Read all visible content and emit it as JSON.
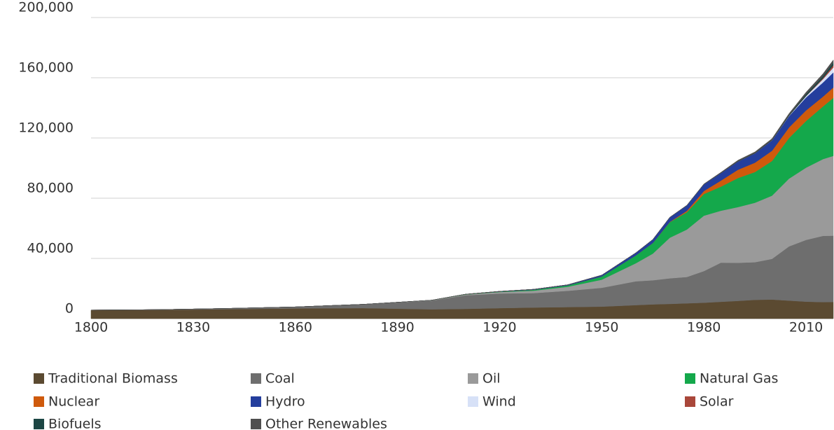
{
  "chart_data": {
    "type": "stacked_area",
    "x": [
      1800,
      1820,
      1840,
      1860,
      1880,
      1900,
      1910,
      1920,
      1930,
      1940,
      1950,
      1960,
      1965,
      1970,
      1975,
      1980,
      1985,
      1990,
      1995,
      2000,
      2005,
      2010,
      2015,
      2018
    ],
    "series": [
      {
        "name": "Traditional Biomass",
        "color": "#5b4a31",
        "values": [
          5600,
          5800,
          6300,
          6800,
          7000,
          6200,
          6500,
          7000,
          7400,
          7700,
          8000,
          9000,
          9500,
          9800,
          10200,
          10600,
          11200,
          11800,
          12500,
          12700,
          12000,
          11300,
          11000,
          11100
        ]
      },
      {
        "name": "Coal",
        "color": "#6e6e6e",
        "values": [
          100,
          200,
          500,
          1000,
          2500,
          5800,
          9000,
          9700,
          9600,
          10800,
          12500,
          15800,
          16000,
          17000,
          17500,
          21000,
          26000,
          25300,
          25000,
          27000,
          36000,
          41000,
          44000,
          44000
        ]
      },
      {
        "name": "Oil",
        "color": "#9a9a9a",
        "values": [
          0,
          0,
          0,
          0,
          30,
          200,
          500,
          1000,
          1600,
          2700,
          5400,
          12000,
          17700,
          27000,
          31500,
          36800,
          34500,
          37000,
          39500,
          42000,
          45000,
          48000,
          51000,
          53000
        ]
      },
      {
        "name": "Natural Gas",
        "color": "#14a84b",
        "values": [
          0,
          0,
          0,
          0,
          0,
          60,
          150,
          250,
          600,
          900,
          2100,
          5200,
          7000,
          10300,
          11500,
          14400,
          16000,
          19300,
          20400,
          23000,
          27000,
          31000,
          35000,
          38500
        ]
      },
      {
        "name": "Nuclear",
        "color": "#cf5a0c",
        "values": [
          0,
          0,
          0,
          0,
          0,
          0,
          0,
          0,
          0,
          0,
          0,
          0,
          60,
          200,
          900,
          2000,
          4000,
          5500,
          6200,
          6800,
          7000,
          7000,
          6500,
          6900
        ]
      },
      {
        "name": "Hydro",
        "color": "#243e9d",
        "values": [
          0,
          0,
          0,
          0,
          0,
          0,
          100,
          200,
          300,
          400,
          900,
          1700,
          2300,
          3000,
          3600,
          4400,
          5000,
          5500,
          6200,
          6900,
          7500,
          8600,
          9400,
          10000
        ]
      },
      {
        "name": "Wind",
        "color": "#d7e1f7",
        "values": [
          0,
          0,
          0,
          0,
          0,
          0,
          0,
          0,
          0,
          0,
          0,
          0,
          0,
          0,
          0,
          0,
          0,
          10,
          20,
          80,
          260,
          900,
          2200,
          3300
        ]
      },
      {
        "name": "Solar",
        "color": "#a9473a",
        "values": [
          0,
          0,
          0,
          0,
          0,
          0,
          0,
          0,
          0,
          0,
          0,
          0,
          0,
          0,
          0,
          0,
          0,
          0,
          0,
          0,
          10,
          80,
          650,
          1500
        ]
      },
      {
        "name": "Biofuels",
        "color": "#1c4644",
        "values": [
          0,
          0,
          0,
          0,
          0,
          0,
          0,
          0,
          0,
          0,
          0,
          0,
          0,
          0,
          20,
          40,
          100,
          250,
          250,
          270,
          480,
          1200,
          1400,
          1700
        ]
      },
      {
        "name": "Other Renewables",
        "color": "#4f4f4f",
        "values": [
          0,
          0,
          0,
          0,
          0,
          0,
          0,
          0,
          0,
          0,
          0,
          40,
          60,
          100,
          150,
          250,
          400,
          550,
          700,
          800,
          950,
          1300,
          1600,
          1800
        ]
      }
    ],
    "xlim": [
      1800,
      2018
    ],
    "xticks": [
      1800,
      1830,
      1860,
      1890,
      1920,
      1950,
      1980,
      2010
    ],
    "ylim": [
      0,
      200000
    ],
    "yticks": [
      0,
      {
        "value": 40000,
        "label": "40,000"
      },
      {
        "value": 80000,
        "label": "80,000"
      },
      {
        "value": 120000,
        "label": "120,000"
      },
      {
        "value": 160000,
        "label": "160,000"
      },
      {
        "value": 200000,
        "label": "200,000"
      }
    ],
    "grid": true
  }
}
